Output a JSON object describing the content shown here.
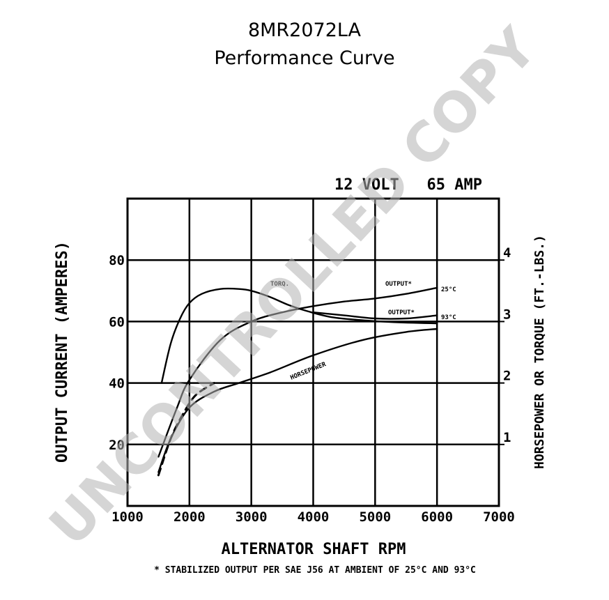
{
  "header": {
    "part_number": "8MR2072LA",
    "subtitle": "Performance Curve"
  },
  "watermark": "UNCONTROLLED COPY",
  "chart_data": {
    "type": "line",
    "spec_label": "12 VOLT   65 AMP",
    "xlabel": "ALTERNATOR SHAFT RPM",
    "ylabel_left": "OUTPUT CURRENT (AMPERES)",
    "ylabel_right": "HORSEPOWER OR TORQUE (FT.-LBS.)",
    "footnote": "* STABILIZED OUTPUT PER SAE J56 AT AMBIENT OF 25°C AND 93°C",
    "xlim": [
      1000,
      7000
    ],
    "ylim_left": [
      0,
      100
    ],
    "ylim_right": [
      0,
      5
    ],
    "x_ticks": [
      1000,
      2000,
      3000,
      4000,
      5000,
      6000,
      7000
    ],
    "x_tick_labels": [
      "1000",
      "2000",
      "3000",
      "4000",
      "5000",
      "6000",
      "7000"
    ],
    "y_left_ticks": [
      20,
      40,
      60,
      80
    ],
    "y_left_tick_labels": [
      "20",
      "40",
      "60",
      "80"
    ],
    "y_right_ticks": [
      1,
      2,
      3,
      4
    ],
    "y_right_tick_labels": [
      "1",
      "2",
      "3",
      "4"
    ],
    "grid": true,
    "series": [
      {
        "name": "OUTPUT* 25°C",
        "axis": "left",
        "line_style": "solid",
        "x": [
          1500,
          1800,
          2000,
          2500,
          3000,
          3500,
          4000,
          4500,
          5000,
          5500,
          6000
        ],
        "y": [
          16,
          32,
          41,
          54,
          60,
          63,
          65,
          66.5,
          67.5,
          69,
          71
        ]
      },
      {
        "name": "OUTPUT* 93°C",
        "axis": "left",
        "line_style": "solid",
        "x": [
          4000,
          4500,
          5000,
          5500,
          6000
        ],
        "y": [
          63,
          62,
          61,
          61,
          62
        ]
      },
      {
        "name": "TORQUE",
        "axis": "right",
        "line_style": "solid",
        "x": [
          1550,
          1700,
          1850,
          2000,
          2200,
          2500,
          2800,
          3000,
          3300,
          3600,
          3900,
          4300,
          4800,
          5300,
          6000
        ],
        "y": [
          2.0,
          2.65,
          3.05,
          3.3,
          3.45,
          3.53,
          3.53,
          3.5,
          3.4,
          3.27,
          3.17,
          3.07,
          3.02,
          2.99,
          2.97
        ]
      },
      {
        "name": "HORSEPOWER",
        "axis": "right",
        "line_style": "solid",
        "x": [
          1500,
          1700,
          2000,
          2400,
          2800,
          3300,
          4000,
          4800,
          5500,
          6000
        ],
        "y": [
          0.55,
          1.1,
          1.6,
          1.86,
          2.0,
          2.17,
          2.45,
          2.7,
          2.83,
          2.88
        ]
      },
      {
        "name": "",
        "axis": "left",
        "line_style": "dashed",
        "x": [
          1500,
          1700,
          1900,
          2100,
          2400
        ],
        "y": [
          10,
          22,
          30,
          36,
          40
        ]
      }
    ],
    "curve_labels": [
      "TORQ.",
      "OUTPUT*",
      "25°C",
      "OUTPUT*",
      "93°C",
      "HORSEPOWER"
    ]
  }
}
